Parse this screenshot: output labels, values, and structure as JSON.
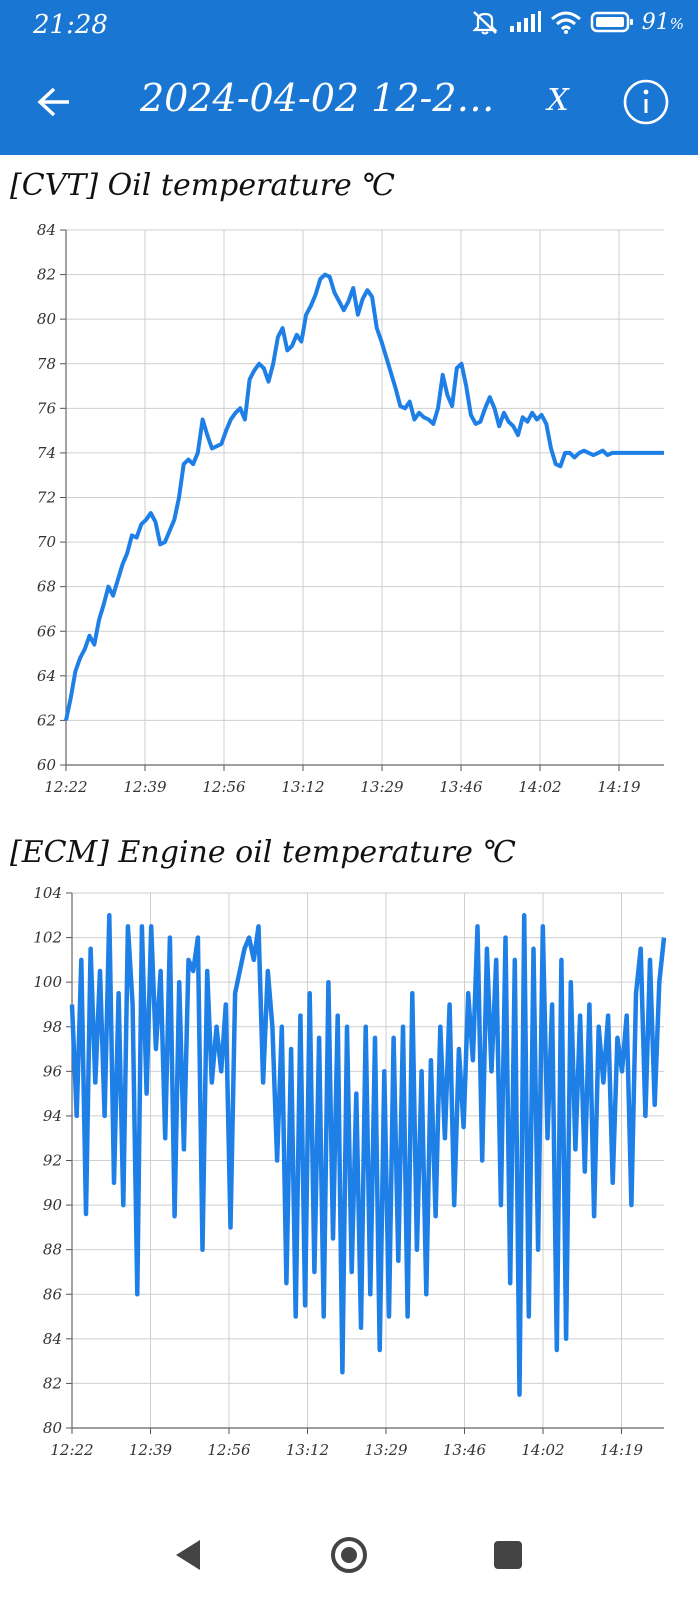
{
  "status_bar": {
    "time": "21:28",
    "battery": "91",
    "battery_unit": "%",
    "icons": [
      "mute-icon",
      "signal-icon",
      "wifi-icon",
      "battery-icon"
    ]
  },
  "app_bar": {
    "title": "2024-04-02 12-22...",
    "close_label": "X",
    "back_icon": "arrow-left-icon",
    "info_icon": "info-icon",
    "color": "#1976d2"
  },
  "charts": [
    {
      "title": "[CVT] Oil temperature ℃"
    },
    {
      "title": "[ECM] Engine oil temperature ℃"
    }
  ],
  "nav_bar": {
    "icons": [
      "back-triangle-icon",
      "home-circle-icon",
      "recents-square-icon"
    ]
  },
  "chart_data": [
    {
      "type": "line",
      "title": "[CVT] Oil temperature ℃",
      "line_color": "#1e7fe6",
      "ylim": [
        60,
        84
      ],
      "y_ticks": [
        60,
        62,
        64,
        66,
        68,
        70,
        72,
        74,
        76,
        78,
        80,
        82,
        84
      ],
      "x_tick_labels": [
        "12:22",
        "12:39",
        "12:56",
        "13:12",
        "13:29",
        "13:46",
        "14:02",
        "14:19"
      ],
      "grid": true,
      "x_minutes_range": [
        0,
        127
      ],
      "series": [
        {
          "x": [
            0,
            1,
            2,
            3,
            4,
            5,
            6,
            7,
            8,
            9,
            10,
            11,
            12,
            13,
            14,
            15,
            16,
            17,
            18,
            19,
            20,
            21,
            22,
            23,
            24,
            25,
            26,
            27,
            28,
            29,
            30,
            31,
            32,
            33,
            34,
            35,
            36,
            37,
            38,
            39,
            40,
            41,
            42,
            43,
            44,
            45,
            46,
            47,
            48,
            49,
            50,
            51,
            52,
            53,
            54,
            55,
            56,
            57,
            58,
            59,
            60,
            61,
            62,
            63,
            64,
            65,
            66,
            67,
            68,
            69,
            70,
            71,
            72,
            73,
            74,
            75,
            76,
            77,
            78,
            79,
            80,
            81,
            82,
            83,
            84,
            85,
            86,
            87,
            88,
            89,
            90,
            91,
            92,
            93,
            94,
            95,
            96,
            97,
            98,
            99,
            100,
            101,
            102,
            103,
            104,
            105,
            106,
            107,
            108,
            109,
            110,
            111,
            112,
            113,
            114,
            115,
            116,
            117,
            118,
            119,
            120,
            121,
            122,
            123,
            124,
            125,
            126,
            127
          ],
          "values": [
            62.0,
            63.0,
            64.2,
            64.8,
            65.2,
            65.8,
            65.4,
            66.5,
            67.2,
            68.0,
            67.6,
            68.3,
            69.0,
            69.5,
            70.3,
            70.2,
            70.8,
            71.0,
            71.3,
            70.9,
            69.9,
            70.0,
            70.5,
            71.0,
            72.0,
            73.5,
            73.7,
            73.5,
            74.0,
            75.5,
            74.8,
            74.2,
            74.3,
            74.4,
            75.0,
            75.5,
            75.8,
            76.0,
            75.5,
            77.3,
            77.7,
            78.0,
            77.8,
            77.2,
            78.0,
            79.2,
            79.6,
            78.6,
            78.8,
            79.3,
            79.0,
            80.2,
            80.6,
            81.1,
            81.8,
            82.0,
            81.9,
            81.2,
            80.8,
            80.4,
            80.8,
            81.4,
            80.2,
            80.9,
            81.3,
            81.0,
            79.6,
            79.0,
            78.3,
            77.6,
            76.9,
            76.1,
            76.0,
            76.3,
            75.5,
            75.8,
            75.6,
            75.5,
            75.3,
            76.0,
            77.5,
            76.6,
            76.1,
            77.8,
            78.0,
            77.0,
            75.7,
            75.3,
            75.4,
            76.0,
            76.5,
            76.0,
            75.2,
            75.8,
            75.4,
            75.2,
            74.8,
            75.6,
            75.4,
            75.8,
            75.5,
            75.7,
            75.3,
            74.2,
            73.5,
            73.4,
            74.0,
            74.0,
            73.8,
            74.0,
            74.1,
            74.0,
            73.9,
            74.0,
            74.1,
            73.9,
            74.0,
            74.0,
            74.0,
            74.0,
            74.0,
            74.0,
            74.0,
            74.0,
            74.0,
            74.0,
            74.0,
            74.0
          ]
        }
      ]
    },
    {
      "type": "line",
      "title": "[ECM] Engine oil temperature ℃",
      "line_color": "#1e7fe6",
      "ylim": [
        80,
        104
      ],
      "y_ticks": [
        80,
        82,
        84,
        86,
        88,
        90,
        92,
        94,
        96,
        98,
        100,
        102,
        104
      ],
      "x_tick_labels": [
        "12:22",
        "12:39",
        "12:56",
        "13:12",
        "13:29",
        "13:46",
        "14:02",
        "14:19"
      ],
      "grid": true,
      "x_minutes_range": [
        0,
        127
      ],
      "series": [
        {
          "x": [
            0,
            1,
            2,
            3,
            4,
            5,
            6,
            7,
            8,
            9,
            10,
            11,
            12,
            13,
            14,
            15,
            16,
            17,
            18,
            19,
            20,
            21,
            22,
            23,
            24,
            25,
            26,
            27,
            28,
            29,
            30,
            31,
            32,
            33,
            34,
            35,
            36,
            37,
            38,
            39,
            40,
            41,
            42,
            43,
            44,
            45,
            46,
            47,
            48,
            49,
            50,
            51,
            52,
            53,
            54,
            55,
            56,
            57,
            58,
            59,
            60,
            61,
            62,
            63,
            64,
            65,
            66,
            67,
            68,
            69,
            70,
            71,
            72,
            73,
            74,
            75,
            76,
            77,
            78,
            79,
            80,
            81,
            82,
            83,
            84,
            85,
            86,
            87,
            88,
            89,
            90,
            91,
            92,
            93,
            94,
            95,
            96,
            97,
            98,
            99,
            100,
            101,
            102,
            103,
            104,
            105,
            106,
            107,
            108,
            109,
            110,
            111,
            112,
            113,
            114,
            115,
            116,
            117,
            118,
            119,
            120,
            121,
            122,
            123,
            124,
            125,
            126,
            127
          ],
          "values": [
            99.0,
            94.0,
            101.0,
            89.6,
            101.5,
            95.5,
            100.5,
            94.0,
            103.0,
            91.0,
            99.5,
            90.0,
            102.5,
            99.0,
            86.0,
            102.5,
            95.0,
            102.5,
            97.0,
            100.5,
            93.0,
            102.0,
            89.5,
            100.0,
            92.5,
            101.0,
            100.5,
            102.0,
            88.0,
            100.5,
            95.5,
            98.0,
            96.0,
            99.0,
            89.0,
            99.5,
            100.5,
            101.5,
            102.0,
            101.0,
            102.5,
            95.5,
            100.5,
            98.0,
            92.0,
            98.0,
            86.5,
            97.0,
            85.0,
            98.5,
            85.5,
            99.5,
            87.0,
            97.5,
            85.0,
            100.0,
            88.5,
            98.5,
            82.5,
            98.0,
            87.0,
            95.0,
            84.5,
            98.0,
            86.0,
            97.5,
            83.5,
            96.0,
            85.0,
            97.5,
            87.5,
            98.0,
            85.0,
            99.5,
            88.0,
            96.0,
            86.0,
            96.5,
            89.5,
            98.0,
            93.0,
            99.0,
            90.0,
            97.0,
            93.5,
            99.5,
            96.5,
            102.5,
            92.0,
            101.5,
            96.0,
            101.0,
            90.0,
            102.0,
            86.5,
            101.0,
            81.5,
            103.0,
            85.0,
            101.5,
            88.0,
            102.5,
            93.0,
            99.0,
            83.5,
            101.0,
            84.0,
            100.0,
            92.5,
            98.5,
            91.5,
            99.0,
            89.5,
            98.0,
            95.5,
            98.5,
            91.0,
            97.5,
            96.0,
            98.5,
            90.0,
            99.5,
            101.5,
            94.0,
            101.0,
            94.5,
            100.0,
            102.0
          ]
        }
      ]
    }
  ]
}
